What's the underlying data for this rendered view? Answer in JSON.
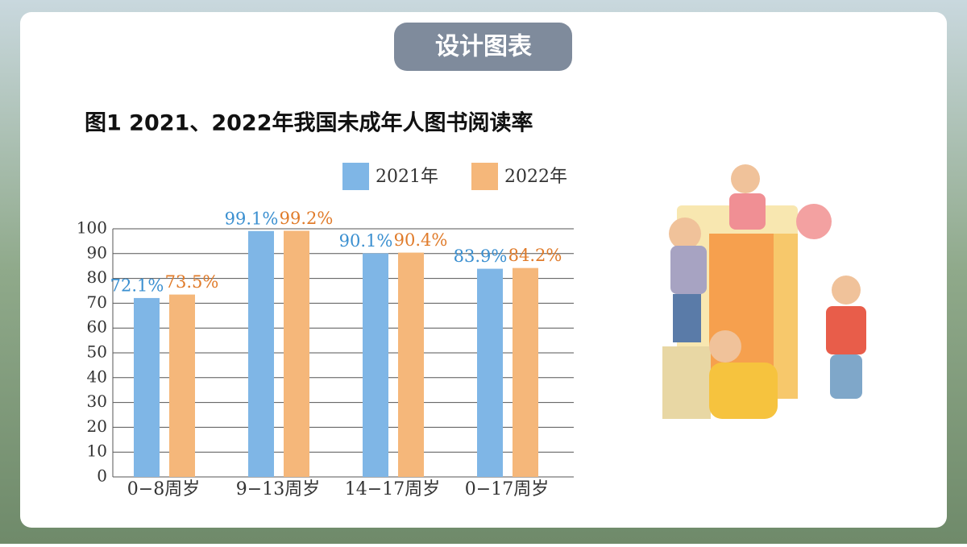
{
  "header": {
    "badge": "设计图表"
  },
  "chart_data": {
    "type": "bar",
    "title": "图1 2021、2022年我国未成年人图书阅读率",
    "categories": [
      "0−8周岁",
      "9−13周岁",
      "14−17周岁",
      "0−17周岁"
    ],
    "series": [
      {
        "name": "2021年",
        "color": "#7fb6e6",
        "label_color": "#3a8fd0",
        "values": [
          72.1,
          99.1,
          90.1,
          83.9
        ],
        "value_labels": [
          "72.1%",
          "99.1%",
          "90.1%",
          "83.9%"
        ]
      },
      {
        "name": "2022年",
        "color": "#f5b77a",
        "label_color": "#e07b2a",
        "values": [
          73.5,
          99.2,
          90.4,
          84.2
        ],
        "value_labels": [
          "73.5%",
          "99.2%",
          "90.4%",
          "84.2%"
        ]
      }
    ],
    "ylim": [
      0,
      100
    ],
    "yticks": [
      0,
      10,
      20,
      30,
      40,
      50,
      60,
      70,
      80,
      90,
      100
    ],
    "grid": true
  }
}
